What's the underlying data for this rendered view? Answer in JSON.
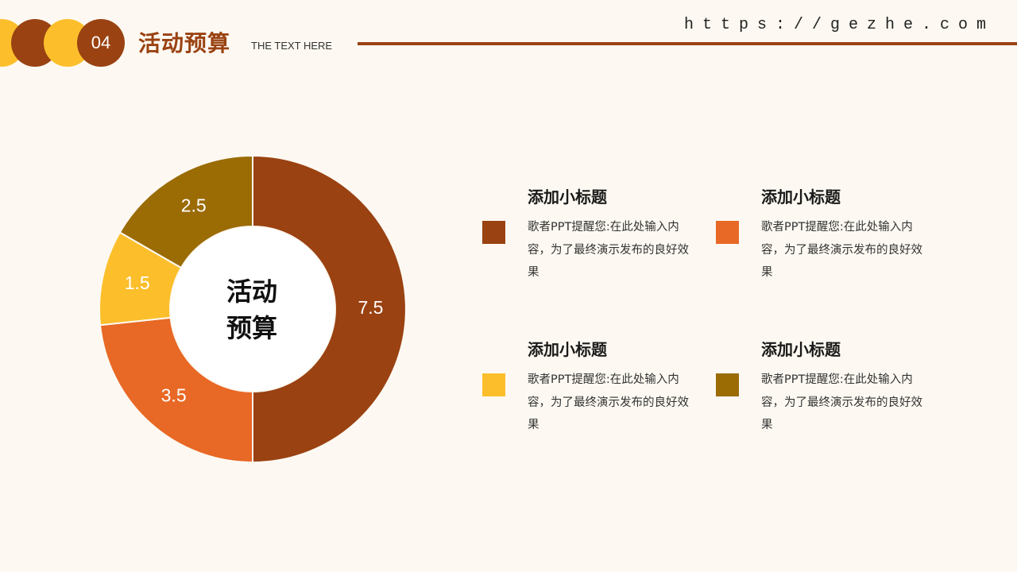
{
  "header": {
    "section_number": "04",
    "title": "活动预算",
    "subtitle": "THE TEXT HERE",
    "url": "https://gezhe.com"
  },
  "colors": {
    "dark_brown": "#9a4212",
    "orange": "#e86825",
    "yellow": "#fcbf2b",
    "olive": "#9b6b04",
    "background": "#fdf9f2"
  },
  "chart_data": {
    "type": "pie",
    "donut": true,
    "center_label": "活动预算",
    "center_lines": [
      "活动",
      "预算"
    ],
    "slices": [
      {
        "label": "7.5",
        "value": 7.5,
        "color": "#9a4212"
      },
      {
        "label": "3.5",
        "value": 3.5,
        "color": "#e86825"
      },
      {
        "label": "1.5",
        "value": 1.5,
        "color": "#fcbf2b"
      },
      {
        "label": "2.5",
        "value": 2.5,
        "color": "#9b6b04"
      }
    ],
    "start_direction": "top",
    "direction": "clockwise",
    "legend_position": "right"
  },
  "legend_cards": [
    {
      "title": "添加小标题",
      "desc": "歌者PPT提醒您:在此处输入内容，为了最终演示发布的良好效果",
      "color": "#9a4212"
    },
    {
      "title": "添加小标题",
      "desc": "歌者PPT提醒您:在此处输入内容，为了最终演示发布的良好效果",
      "color": "#e86825"
    },
    {
      "title": "添加小标题",
      "desc": "歌者PPT提醒您:在此处输入内容，为了最终演示发布的良好效果",
      "color": "#fcbf2b"
    },
    {
      "title": "添加小标题",
      "desc": "歌者PPT提醒您:在此处输入内容，为了最终演示发布的良好效果",
      "color": "#9b6b04"
    }
  ]
}
